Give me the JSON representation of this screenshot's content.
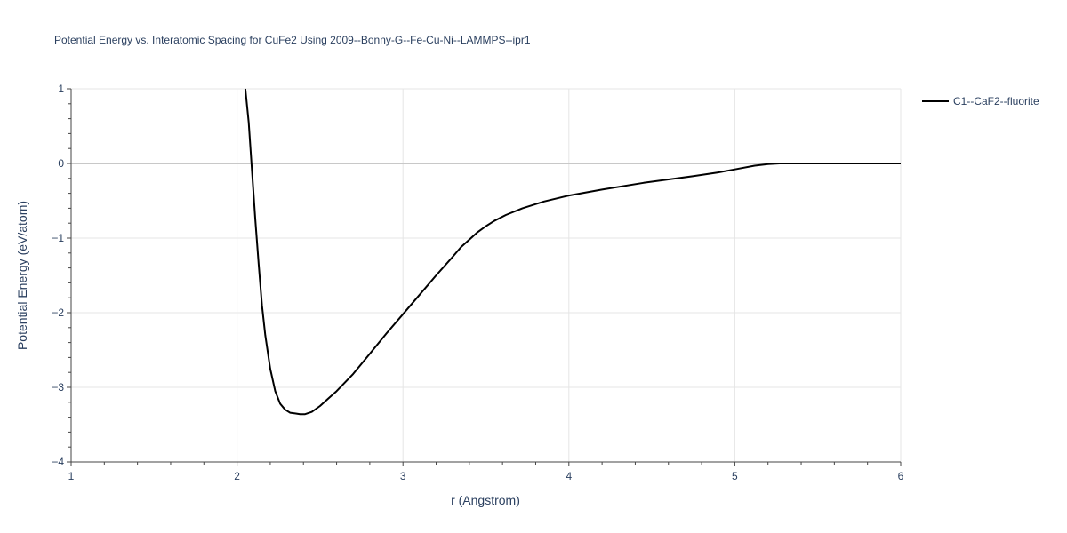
{
  "chart_data": {
    "type": "line",
    "title": "Potential Energy vs. Interatomic Spacing for CuFe2 Using 2009--Bonny-G--Fe-Cu-Ni--LAMMPS--ipr1",
    "xlabel": "r (Angstrom)",
    "ylabel": "Potential Energy (eV/atom)",
    "xlim": [
      1,
      6
    ],
    "ylim": [
      -4,
      1
    ],
    "x_ticks": [
      "1",
      "2",
      "3",
      "4",
      "5",
      "6"
    ],
    "y_ticks": [
      "1",
      "0",
      "−1",
      "−2",
      "−3",
      "−4"
    ],
    "grid": true,
    "legend_position": "top-right",
    "series": [
      {
        "name": "C1--CaF2--fluorite",
        "color": "#000000",
        "x": [
          2.05,
          2.07,
          2.09,
          2.11,
          2.13,
          2.15,
          2.17,
          2.2,
          2.23,
          2.26,
          2.29,
          2.32,
          2.35,
          2.38,
          2.41,
          2.45,
          2.5,
          2.55,
          2.6,
          2.7,
          2.8,
          2.9,
          3.0,
          3.1,
          3.2,
          3.3,
          3.35,
          3.4,
          3.45,
          3.5,
          3.55,
          3.62,
          3.72,
          3.85,
          4.0,
          4.2,
          4.45,
          4.75,
          4.9,
          5.0,
          5.12,
          5.2,
          5.27,
          5.4,
          5.6,
          6.0
        ],
        "y": [
          1.0,
          0.55,
          -0.1,
          -0.75,
          -1.35,
          -1.9,
          -2.3,
          -2.75,
          -3.05,
          -3.22,
          -3.3,
          -3.34,
          -3.35,
          -3.36,
          -3.36,
          -3.33,
          -3.25,
          -3.15,
          -3.05,
          -2.82,
          -2.55,
          -2.28,
          -2.02,
          -1.76,
          -1.5,
          -1.25,
          -1.12,
          -1.02,
          -0.92,
          -0.84,
          -0.77,
          -0.69,
          -0.6,
          -0.51,
          -0.43,
          -0.35,
          -0.26,
          -0.17,
          -0.12,
          -0.08,
          -0.03,
          -0.01,
          0.0,
          0.0,
          0.0,
          0.0
        ]
      }
    ]
  }
}
